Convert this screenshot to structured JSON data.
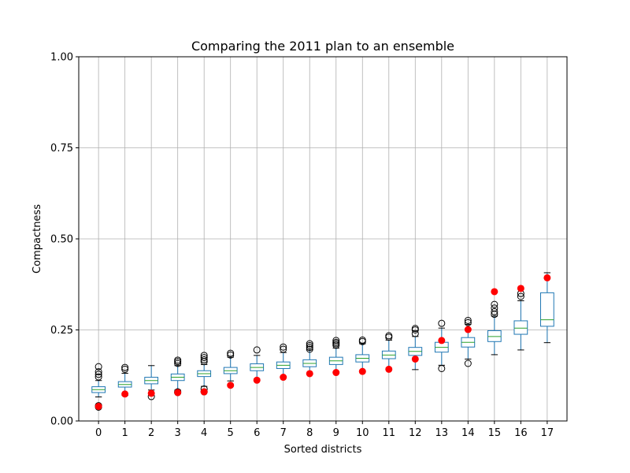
{
  "chart_data": {
    "type": "box",
    "title": "Comparing the 2011 plan to an ensemble",
    "xlabel": "Sorted districts",
    "ylabel": "Compactness",
    "ylim": [
      0.0,
      1.0
    ],
    "yticks": [
      0.0,
      0.25,
      0.5,
      0.75,
      1.0
    ],
    "ytick_labels": [
      "0.00",
      "0.25",
      "0.50",
      "0.75",
      "1.00"
    ],
    "grid": true,
    "categories": [
      "0",
      "1",
      "2",
      "3",
      "4",
      "5",
      "6",
      "7",
      "8",
      "9",
      "10",
      "11",
      "12",
      "13",
      "14",
      "15",
      "16",
      "17"
    ],
    "box_color": "#1f77b4",
    "median_color": "#2ca02c",
    "plan_marker_color": "#ff0000",
    "boxes": [
      {
        "q1": 0.078,
        "median": 0.086,
        "q3": 0.094,
        "whisker_low": 0.066,
        "whisker_high": 0.111,
        "fliers": [
          0.038,
          0.042,
          0.121,
          0.128,
          0.135,
          0.149
        ]
      },
      {
        "q1": 0.093,
        "median": 0.1,
        "q3": 0.108,
        "whisker_low": 0.07,
        "whisker_high": 0.131,
        "fliers": [
          0.142,
          0.147
        ]
      },
      {
        "q1": 0.102,
        "median": 0.111,
        "q3": 0.12,
        "whisker_low": 0.085,
        "whisker_high": 0.152,
        "fliers": [
          0.067
        ]
      },
      {
        "q1": 0.111,
        "median": 0.12,
        "q3": 0.129,
        "whisker_low": 0.085,
        "whisker_high": 0.152,
        "fliers": [
          0.078,
          0.08,
          0.158,
          0.163,
          0.167
        ]
      },
      {
        "q1": 0.122,
        "median": 0.13,
        "q3": 0.138,
        "whisker_low": 0.095,
        "whisker_high": 0.155,
        "fliers": [
          0.08,
          0.088,
          0.163,
          0.168,
          0.174,
          0.18
        ]
      },
      {
        "q1": 0.13,
        "median": 0.138,
        "q3": 0.147,
        "whisker_low": 0.11,
        "whisker_high": 0.175,
        "fliers": [
          0.181,
          0.186
        ]
      },
      {
        "q1": 0.138,
        "median": 0.147,
        "q3": 0.157,
        "whisker_low": 0.115,
        "whisker_high": 0.18,
        "fliers": [
          0.195
        ]
      },
      {
        "q1": 0.144,
        "median": 0.153,
        "q3": 0.162,
        "whisker_low": 0.12,
        "whisker_high": 0.188,
        "fliers": [
          0.197,
          0.203
        ]
      },
      {
        "q1": 0.149,
        "median": 0.158,
        "q3": 0.168,
        "whisker_low": 0.128,
        "whisker_high": 0.195,
        "fliers": [
          0.197,
          0.202,
          0.207,
          0.212
        ]
      },
      {
        "q1": 0.155,
        "median": 0.165,
        "q3": 0.175,
        "whisker_low": 0.133,
        "whisker_high": 0.2,
        "fliers": [
          0.208,
          0.212,
          0.216,
          0.221
        ]
      },
      {
        "q1": 0.162,
        "median": 0.172,
        "q3": 0.182,
        "whisker_low": 0.138,
        "whisker_high": 0.212,
        "fliers": [
          0.218,
          0.222
        ]
      },
      {
        "q1": 0.171,
        "median": 0.181,
        "q3": 0.192,
        "whisker_low": 0.145,
        "whisker_high": 0.222,
        "fliers": [
          0.23,
          0.234
        ]
      },
      {
        "q1": 0.18,
        "median": 0.191,
        "q3": 0.202,
        "whisker_low": 0.141,
        "whisker_high": 0.232,
        "fliers": [
          0.24,
          0.25,
          0.254
        ]
      },
      {
        "q1": 0.189,
        "median": 0.202,
        "q3": 0.216,
        "whisker_low": 0.153,
        "whisker_high": 0.255,
        "fliers": [
          0.144,
          0.268
        ]
      },
      {
        "q1": 0.203,
        "median": 0.216,
        "q3": 0.229,
        "whisker_low": 0.17,
        "whisker_high": 0.265,
        "fliers": [
          0.158,
          0.27,
          0.276
        ]
      },
      {
        "q1": 0.218,
        "median": 0.232,
        "q3": 0.248,
        "whisker_low": 0.182,
        "whisker_high": 0.288,
        "fliers": [
          0.293,
          0.3,
          0.31,
          0.32
        ]
      },
      {
        "q1": 0.238,
        "median": 0.255,
        "q3": 0.275,
        "whisker_low": 0.195,
        "whisker_high": 0.33,
        "fliers": [
          0.342,
          0.35
        ]
      },
      {
        "q1": 0.26,
        "median": 0.278,
        "q3": 0.352,
        "whisker_low": 0.215,
        "whisker_high": 0.407,
        "fliers": []
      }
    ],
    "plan_2011": [
      0.04,
      0.074,
      0.076,
      0.078,
      0.08,
      0.098,
      0.112,
      0.12,
      0.13,
      0.133,
      0.136,
      0.142,
      0.17,
      0.221,
      0.251,
      0.355,
      0.364,
      0.393
    ]
  }
}
